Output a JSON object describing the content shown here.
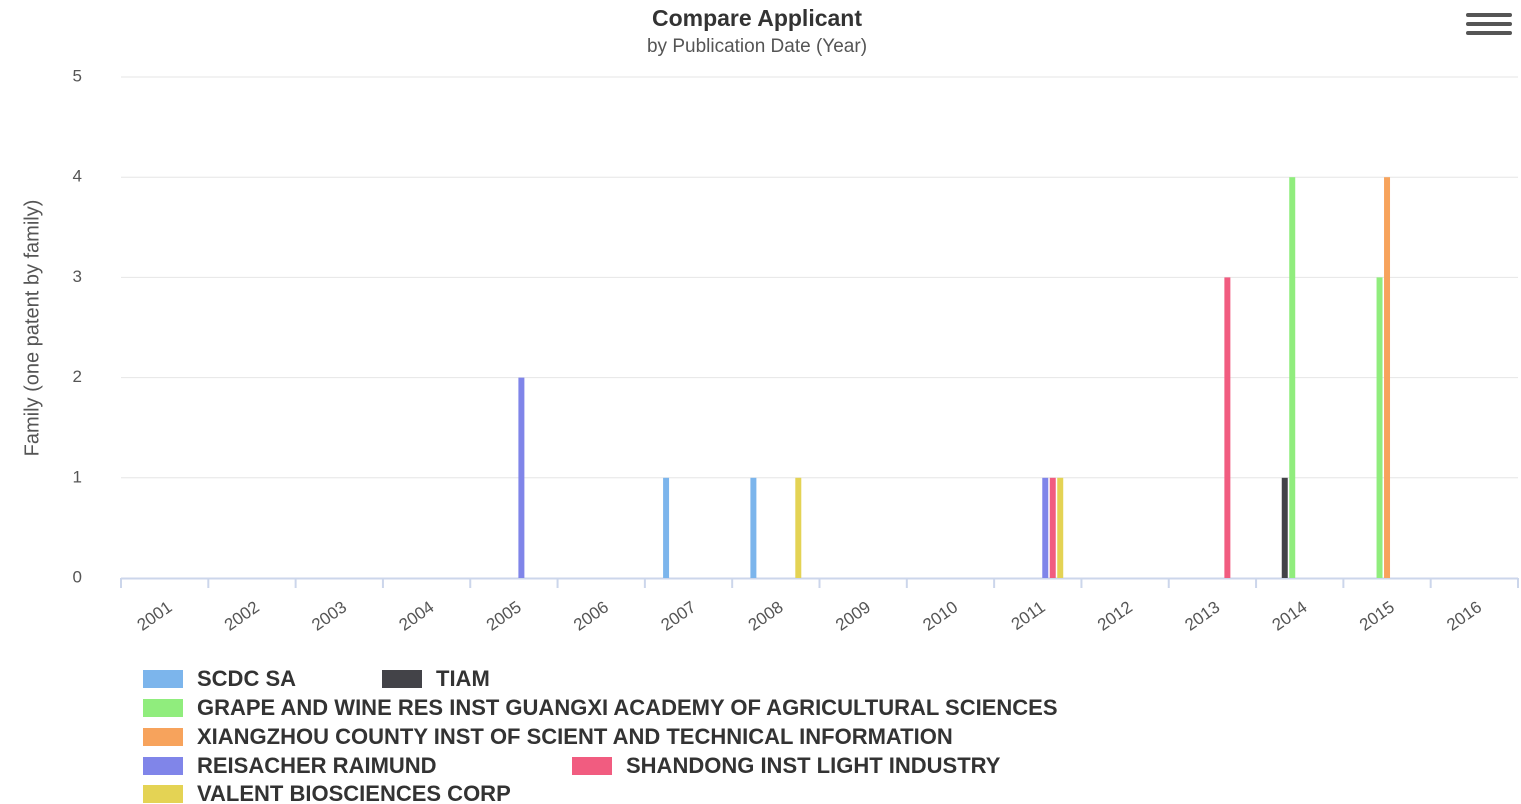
{
  "chart_data": {
    "type": "bar",
    "title": "Compare Applicant",
    "subtitle": "by Publication Date (Year)",
    "y_label": "Family (one patent by family)",
    "categories": [
      "2001",
      "2002",
      "2003",
      "2004",
      "2005",
      "2006",
      "2007",
      "2008",
      "2009",
      "2010",
      "2011",
      "2012",
      "2013",
      "2014",
      "2015",
      "2016"
    ],
    "series": [
      {
        "name": "SCDC SA",
        "color": "#7cb5ec",
        "values": [
          0,
          0,
          0,
          0,
          0,
          0,
          1,
          1,
          0,
          0,
          0,
          0,
          0,
          0,
          0,
          0
        ]
      },
      {
        "name": "TIAM",
        "color": "#434348",
        "values": [
          0,
          0,
          0,
          0,
          0,
          0,
          0,
          0,
          0,
          0,
          0,
          0,
          0,
          1,
          0,
          0
        ]
      },
      {
        "name": "GRAPE AND WINE RES INST GUANGXI ACADEMY OF AGRICULTURAL SCIENCES",
        "color": "#90ed7d",
        "values": [
          0,
          0,
          0,
          0,
          0,
          0,
          0,
          0,
          0,
          0,
          0,
          0,
          0,
          4,
          3,
          0
        ]
      },
      {
        "name": "XIANGZHOU COUNTY INST OF SCIENT AND TECHNICAL INFORMATION",
        "color": "#f7a35c",
        "values": [
          0,
          0,
          0,
          0,
          0,
          0,
          0,
          0,
          0,
          0,
          0,
          0,
          0,
          0,
          4,
          0
        ]
      },
      {
        "name": "REISACHER RAIMUND",
        "color": "#8085e9",
        "values": [
          0,
          0,
          0,
          0,
          2,
          0,
          0,
          0,
          0,
          0,
          1,
          0,
          0,
          0,
          0,
          0
        ]
      },
      {
        "name": "SHANDONG INST LIGHT INDUSTRY",
        "color": "#f15c80",
        "values": [
          0,
          0,
          0,
          0,
          0,
          0,
          0,
          0,
          0,
          0,
          1,
          0,
          3,
          0,
          0,
          0
        ]
      },
      {
        "name": "VALENT BIOSCIENCES CORP",
        "color": "#e4d354",
        "values": [
          0,
          0,
          0,
          0,
          0,
          0,
          0,
          1,
          0,
          0,
          1,
          0,
          0,
          0,
          0,
          0
        ]
      }
    ],
    "ylim": [
      0,
      5
    ],
    "yticks": [
      0,
      1,
      2,
      3,
      4,
      5
    ],
    "grid": true
  }
}
